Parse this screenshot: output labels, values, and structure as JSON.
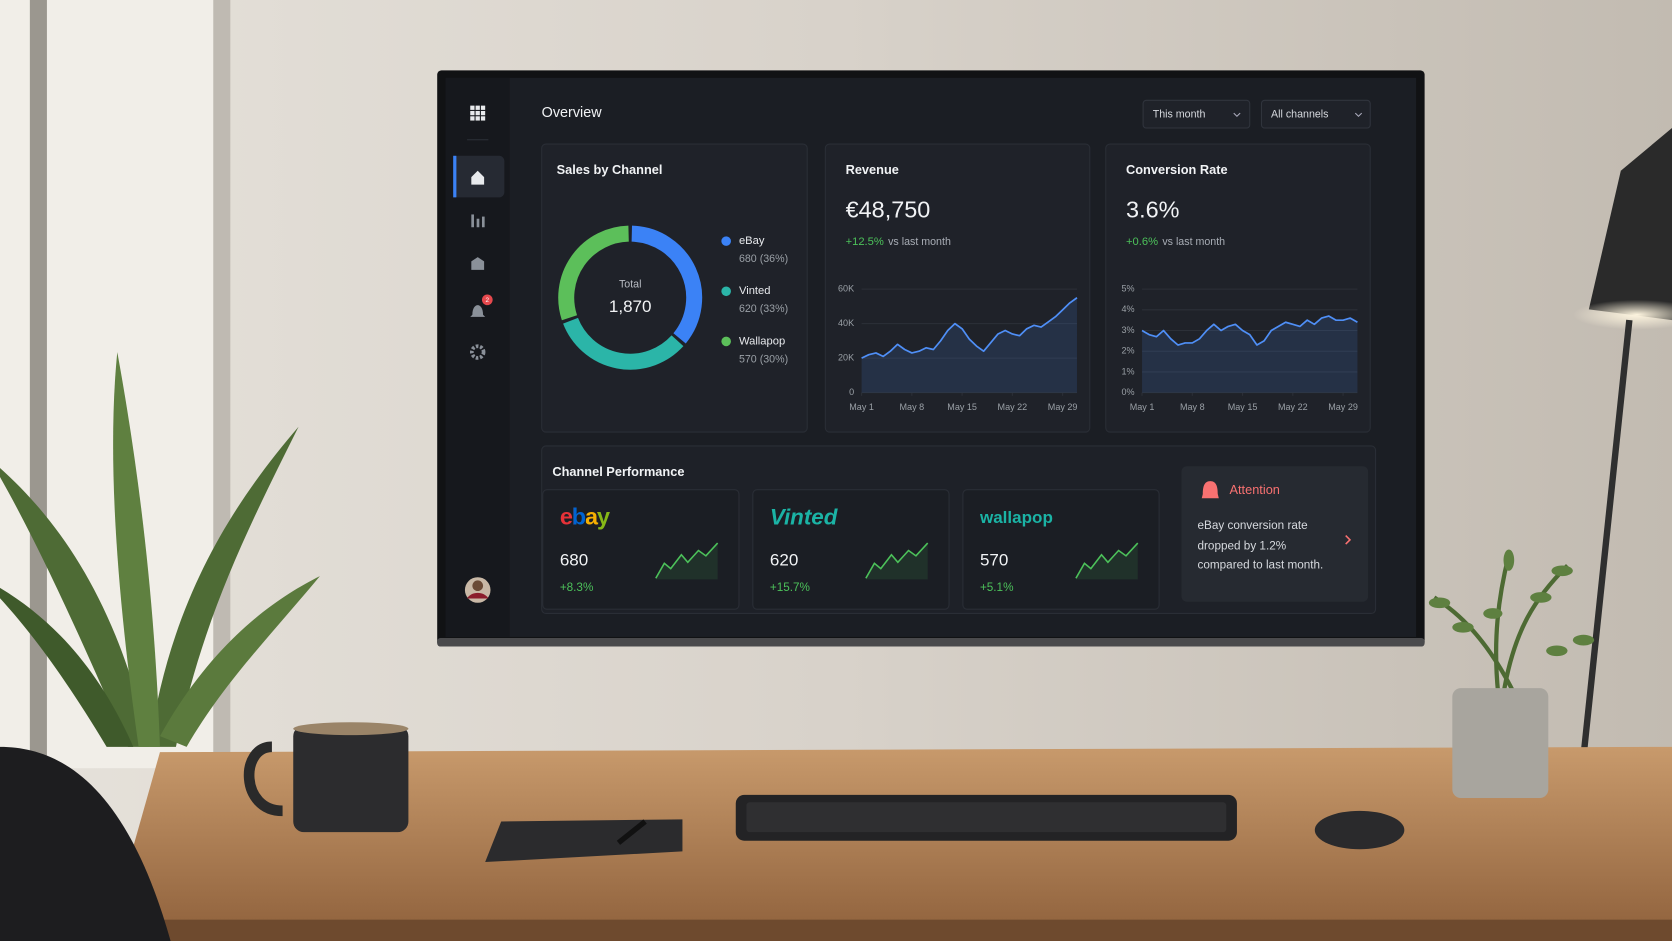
{
  "header": {
    "title": "Overview",
    "filters": [
      "This month",
      "All channels"
    ],
    "notification_count": "2"
  },
  "chart_data": [
    {
      "type": "donut",
      "title": "Sales by Channel",
      "center_label": "Total",
      "center_value": "1,870",
      "categories": [
        "eBay",
        "Vinted",
        "Wallapop"
      ],
      "values": [
        680,
        620,
        570
      ],
      "value_labels": [
        "680 (36%)",
        "620 (33%)",
        "570 (30%)"
      ],
      "colors": [
        "#3b82f6",
        "#2bb5a8",
        "#5cbf5a"
      ]
    },
    {
      "type": "line",
      "title": "Revenue",
      "headline": "€48,750",
      "change": "+12.5%",
      "change_note": "vs last month",
      "color": "#4f8ff7",
      "grid": true,
      "x": [
        1,
        2,
        3,
        4,
        5,
        6,
        7,
        8,
        9,
        10,
        11,
        12,
        13,
        14,
        15,
        16,
        17,
        18,
        19,
        20,
        21,
        22,
        23,
        24,
        25,
        26,
        27,
        28,
        29,
        30,
        31
      ],
      "values": [
        20000,
        22000,
        23000,
        21000,
        24000,
        28000,
        25000,
        23000,
        24000,
        26000,
        25000,
        30000,
        36000,
        40000,
        37000,
        31000,
        27000,
        24000,
        29000,
        34000,
        36000,
        34000,
        33000,
        37000,
        39000,
        38000,
        41000,
        44000,
        48000,
        52000,
        55000
      ],
      "xlim": [
        1,
        31
      ],
      "xticks": [
        {
          "value": 1,
          "label": "May 1"
        },
        {
          "value": 8,
          "label": "May 8"
        },
        {
          "value": 15,
          "label": "May 15"
        },
        {
          "value": 22,
          "label": "May 22"
        },
        {
          "value": 29,
          "label": "May 29"
        }
      ],
      "ylim": [
        0,
        60000
      ],
      "yticks": [
        0,
        {
          "value": 20000,
          "label": "20K"
        },
        {
          "value": 40000,
          "label": "40K"
        },
        {
          "value": 60000,
          "label": "60K"
        }
      ]
    },
    {
      "type": "line",
      "title": "Conversion Rate",
      "headline": "3.6%",
      "change": "+0.6%",
      "change_note": "vs last month",
      "color": "#4f8ff7",
      "grid": true,
      "x": [
        1,
        2,
        3,
        4,
        5,
        6,
        7,
        8,
        9,
        10,
        11,
        12,
        13,
        14,
        15,
        16,
        17,
        18,
        19,
        20,
        21,
        22,
        23,
        24,
        25,
        26,
        27,
        28,
        29,
        30,
        31
      ],
      "values": [
        3.0,
        2.8,
        2.7,
        3.0,
        2.6,
        2.3,
        2.4,
        2.4,
        2.6,
        3.0,
        3.3,
        3.0,
        3.2,
        3.3,
        3.0,
        2.8,
        2.3,
        2.5,
        3.0,
        3.2,
        3.4,
        3.3,
        3.2,
        3.5,
        3.3,
        3.6,
        3.7,
        3.5,
        3.5,
        3.6,
        3.4
      ],
      "xlim": [
        1,
        31
      ],
      "xticks": [
        {
          "value": 1,
          "label": "May 1"
        },
        {
          "value": 8,
          "label": "May 8"
        },
        {
          "value": 15,
          "label": "May 15"
        },
        {
          "value": 22,
          "label": "May 22"
        },
        {
          "value": 29,
          "label": "May 29"
        }
      ],
      "ylim": [
        0,
        5
      ],
      "yticks": [
        {
          "value": 0,
          "label": "0%"
        },
        {
          "value": 1,
          "label": "1%"
        },
        {
          "value": 2,
          "label": "2%"
        },
        {
          "value": 3,
          "label": "3%"
        },
        {
          "value": 4,
          "label": "4%"
        },
        {
          "value": 5,
          "label": "5%"
        }
      ]
    }
  ],
  "channel_performance": {
    "title": "Channel Performance",
    "channels": [
      {
        "name": "ebay",
        "value": 680,
        "change": "+8.3%"
      },
      {
        "name": "Vinted",
        "value": 620,
        "change": "+15.7%"
      },
      {
        "name": "wallapop",
        "value": 570,
        "change": "+5.1%"
      }
    ]
  },
  "attention": {
    "title": "Attention",
    "message": "eBay conversion rate dropped by 1.2% compared to last month."
  }
}
